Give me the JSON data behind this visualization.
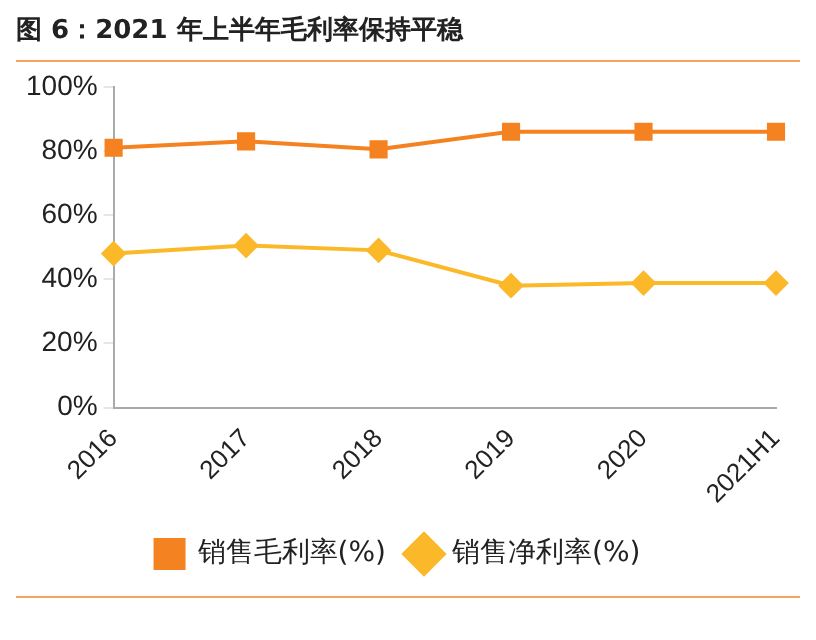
{
  "chart_data": {
    "type": "line",
    "title": "图 6：2021 年上半年毛利率保持平稳",
    "categories": [
      "2016",
      "2017",
      "2018",
      "2019",
      "2020",
      "2021H1"
    ],
    "series": [
      {
        "name": "销售毛利率(%)",
        "color": "#f58220",
        "marker": "square",
        "values": [
          81,
          83,
          80.5,
          86,
          86,
          86
        ]
      },
      {
        "name": "销售净利率(%)",
        "color": "#fbb829",
        "marker": "diamond",
        "values": [
          48,
          50.5,
          49,
          38,
          38.8,
          38.8
        ]
      }
    ],
    "ylim": [
      0,
      100
    ],
    "yticks": [
      {
        "value": 0,
        "label": "0%"
      },
      {
        "value": 20,
        "label": "20%"
      },
      {
        "value": 40,
        "label": "40%"
      },
      {
        "value": 60,
        "label": "60%"
      },
      {
        "value": 80,
        "label": "80%"
      },
      {
        "value": 100,
        "label": "100%"
      }
    ],
    "grid": false,
    "legend": "bottom"
  }
}
